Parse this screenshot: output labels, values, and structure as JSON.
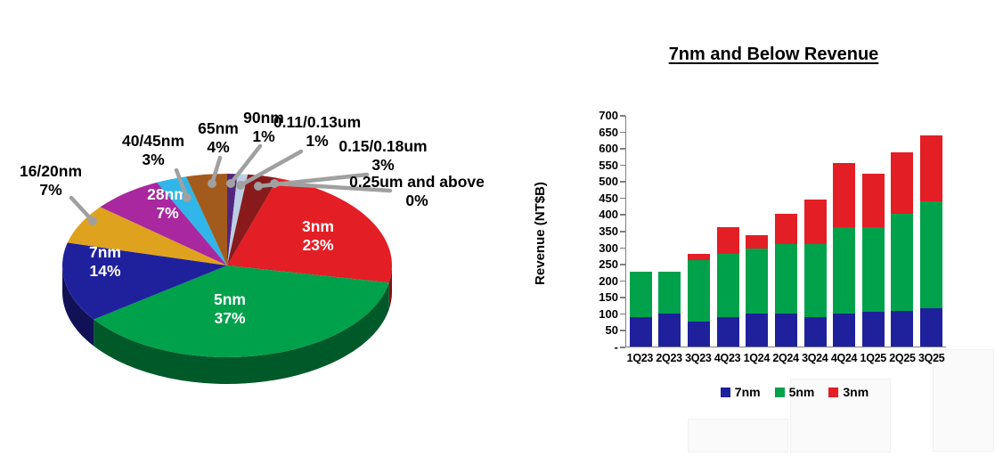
{
  "colors": {
    "leader_line": "#a0a0a0",
    "axis": "#7f7f7f",
    "background": "#ffffff"
  },
  "chart_data": [
    {
      "type": "pie",
      "style": "3d",
      "title": "",
      "leader_color": "#a0a0a0",
      "slices": [
        {
          "label": "3nm",
          "value": 23,
          "display": "23%",
          "color": "#e31e25",
          "label_placement": "inside"
        },
        {
          "label": "5nm",
          "value": 37,
          "display": "37%",
          "color": "#00a14b",
          "label_placement": "inside"
        },
        {
          "label": "7nm",
          "value": 14,
          "display": "14%",
          "color": "#1f219c",
          "label_placement": "inside"
        },
        {
          "label": "16/20nm",
          "value": 7,
          "display": "7%",
          "color": "#dfa21e",
          "label_placement": "outside"
        },
        {
          "label": "28nm",
          "value": 7,
          "display": "7%",
          "color": "#a9279f",
          "label_placement": "inside"
        },
        {
          "label": "40/45nm",
          "value": 3,
          "display": "3%",
          "color": "#30b6e8",
          "label_placement": "outside"
        },
        {
          "label": "65nm",
          "value": 4,
          "display": "4%",
          "color": "#a35b1d",
          "label_placement": "outside"
        },
        {
          "label": "90nm",
          "value": 1,
          "display": "1%",
          "color": "#53267e",
          "label_placement": "outside"
        },
        {
          "label": "0.11/0.13um",
          "value": 1,
          "display": "1%",
          "color": "#bccee4",
          "label_placement": "outside"
        },
        {
          "label": "0.15/0.18um",
          "value": 3,
          "display": "3%",
          "color": "#891a1c",
          "label_placement": "outside"
        },
        {
          "label": "0.25um and above",
          "value": 0,
          "display": "0%",
          "color": "#b01e23",
          "label_placement": "outside"
        }
      ]
    },
    {
      "type": "bar",
      "stacked": true,
      "title": "7nm and Below Revenue",
      "ylabel": "Revenue (NT$B)",
      "ylim": [
        0,
        700
      ],
      "ytick_step": 50,
      "yticks": [
        "700",
        "650",
        "600",
        "550",
        "500",
        "450",
        "400",
        "350",
        "300",
        "250",
        "200",
        "150",
        "100",
        "50",
        "-"
      ],
      "grid": false,
      "legend_position": "bottom",
      "categories": [
        "1Q23",
        "2Q23",
        "3Q23",
        "4Q23",
        "1Q24",
        "2Q24",
        "3Q24",
        "4Q24",
        "1Q25",
        "2Q25",
        "3Q25"
      ],
      "series": [
        {
          "name": "7nm",
          "color": "#1f219c",
          "values": [
            88,
            100,
            75,
            88,
            100,
            100,
            88,
            100,
            105,
            108,
            115
          ]
        },
        {
          "name": "5nm",
          "color": "#00a14b",
          "values": [
            137,
            125,
            185,
            192,
            195,
            210,
            222,
            260,
            257,
            292,
            325
          ]
        },
        {
          "name": "3nm",
          "color": "#e31e25",
          "values": [
            0,
            0,
            20,
            80,
            42,
            90,
            135,
            195,
            160,
            187,
            197
          ]
        }
      ],
      "totals": [
        225,
        225,
        280,
        360,
        337,
        400,
        445,
        555,
        522,
        587,
        637
      ]
    }
  ]
}
